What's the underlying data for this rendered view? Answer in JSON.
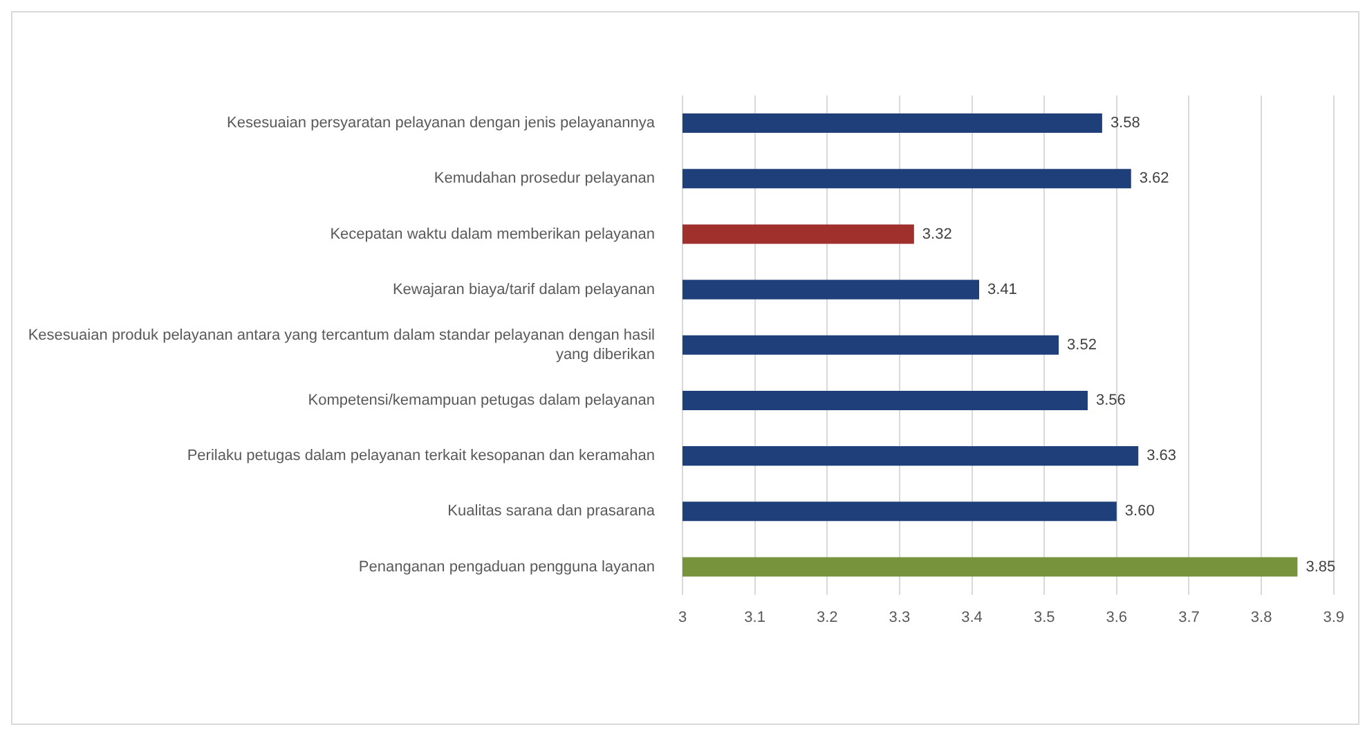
{
  "chart_data": {
    "type": "bar",
    "orientation": "horizontal",
    "categories": [
      "Kesesuaian persyaratan pelayanan dengan jenis pelayanannya",
      "Kemudahan prosedur pelayanan",
      "Kecepatan waktu dalam memberikan pelayanan",
      "Kewajaran biaya/tarif dalam pelayanan",
      "Kesesuaian produk pelayanan antara yang tercantum dalam standar pelayanan dengan hasil yang diberikan",
      "Kompetensi/kemampuan petugas dalam pelayanan",
      "Perilaku petugas dalam pelayanan terkait kesopanan dan keramahan",
      "Kualitas sarana dan prasarana",
      "Penanganan pengaduan pengguna layanan"
    ],
    "values": [
      3.58,
      3.62,
      3.32,
      3.41,
      3.52,
      3.56,
      3.63,
      3.6,
      3.85
    ],
    "colors": [
      "#1f3f7a",
      "#1f3f7a",
      "#a0302c",
      "#1f3f7a",
      "#1f3f7a",
      "#1f3f7a",
      "#1f3f7a",
      "#1f3f7a",
      "#77933c"
    ],
    "value_labels": [
      "3.58",
      "3.62",
      "3.32",
      "3.41",
      "3.52",
      "3.56",
      "3.63",
      "3.60",
      "3.85"
    ],
    "xlim": [
      3,
      3.9
    ],
    "xticks": [
      3,
      3.1,
      3.2,
      3.3,
      3.4,
      3.5,
      3.6,
      3.7,
      3.8,
      3.9
    ],
    "grid": "x",
    "legend": false
  }
}
